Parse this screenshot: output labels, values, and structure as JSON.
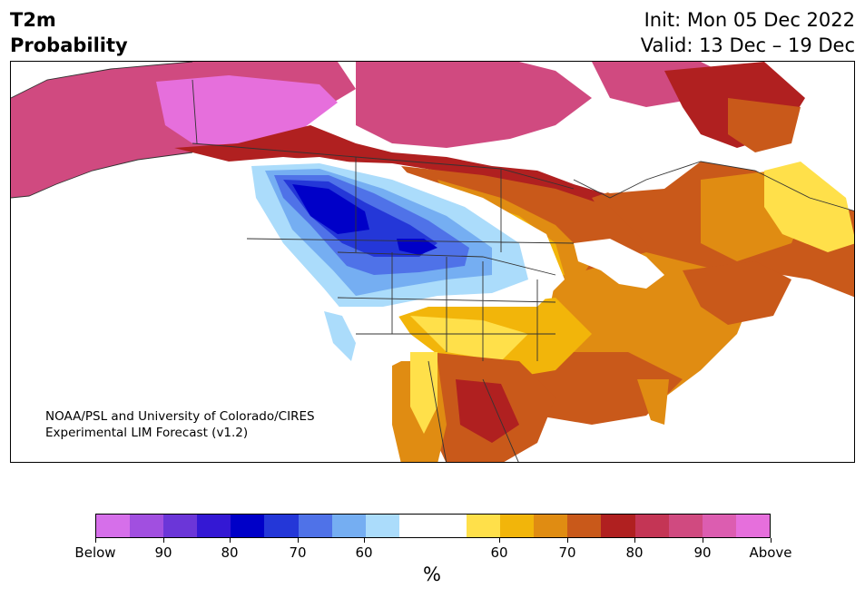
{
  "header": {
    "title_line1": "T2m",
    "title_line2": "Probability",
    "init": "Init: Mon 05 Dec 2022",
    "valid": "Valid: 13 Dec – 19 Dec"
  },
  "credit": {
    "line1": "NOAA/PSL and University of Colorado/CIRES",
    "line2": "Experimental LIM Forecast (v1.2)"
  },
  "colorbar": {
    "unit": "%",
    "colors": [
      "#d66fea",
      "#a14fe0",
      "#6b36d8",
      "#3418d4",
      "#0000c8",
      "#2437d8",
      "#4f72e8",
      "#75aef2",
      "#abdcfb",
      "#ffffff",
      "#ffffff",
      "#ffe04a",
      "#f2b50a",
      "#e08c12",
      "#c9591a",
      "#b02020",
      "#c43555",
      "#d04a80",
      "#dc5db0",
      "#e66fdc"
    ],
    "ticks": [
      "Below",
      "90",
      "80",
      "70",
      "60",
      "60",
      "70",
      "80",
      "90",
      "Above"
    ]
  },
  "map": {
    "colors": {
      "above_high": "#e66fdc",
      "above_mid": "#d04a80",
      "dark_red": "#b02020",
      "orange_red": "#c9591a",
      "orange": "#e08c12",
      "gold": "#f2b50a",
      "yellow": "#ffe04a",
      "light_blue": "#abdcfb",
      "mid_blue": "#75aef2",
      "blue": "#4f72e8",
      "deep_blue": "#2437d8",
      "navy": "#0000c8",
      "ocean": "#ffffff"
    }
  }
}
